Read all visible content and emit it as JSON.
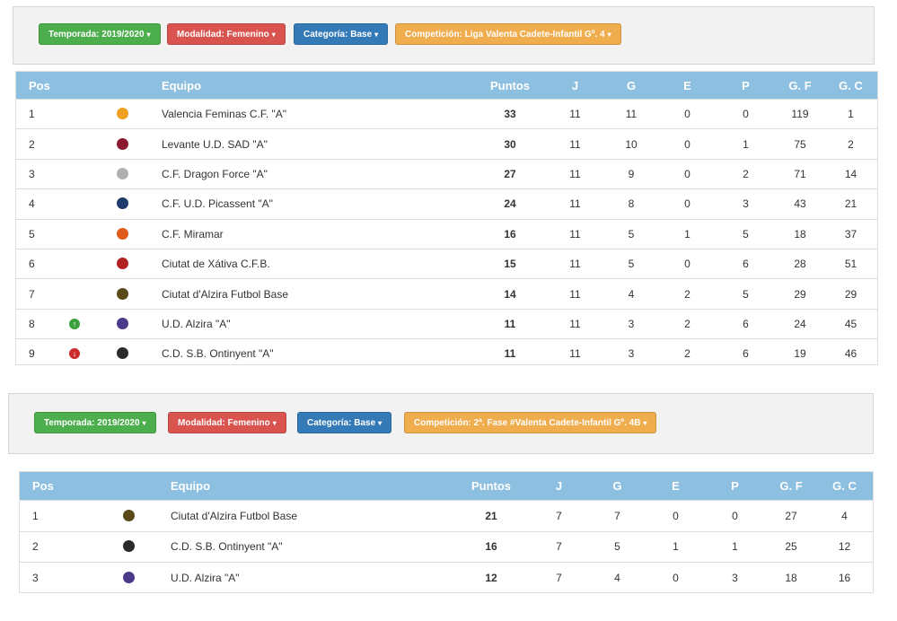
{
  "section1": {
    "filters": {
      "season": "Temporada: 2019/2020",
      "mode": "Modalidad: Femenino",
      "category": "Categoría: Base",
      "competition": "Competición: Liga Valenta Cadete-Infantil Gº. 4"
    },
    "headers": [
      "Pos",
      "Equipo",
      "Puntos",
      "J",
      "G",
      "E",
      "P",
      "G. F",
      "G. C"
    ],
    "rows": [
      {
        "pos": "1",
        "team": "Valencia Feminas C.F. \"A\"",
        "pts": "33",
        "j": "11",
        "g": "11",
        "e": "0",
        "p": "0",
        "gf": "119",
        "gc": "1",
        "crest": "valencia-crest-icon",
        "color": "#f0a020",
        "trend": ""
      },
      {
        "pos": "2",
        "team": "Levante U.D. SAD \"A\"",
        "pts": "30",
        "j": "11",
        "g": "10",
        "e": "0",
        "p": "1",
        "gf": "75",
        "gc": "2",
        "crest": "levante-crest-icon",
        "color": "#8b1a2e",
        "trend": ""
      },
      {
        "pos": "3",
        "team": "C.F. Dragon Force \"A\"",
        "pts": "27",
        "j": "11",
        "g": "9",
        "e": "0",
        "p": "2",
        "gf": "71",
        "gc": "14",
        "crest": "dragon-force-crest-icon",
        "color": "#b0b0b0",
        "trend": ""
      },
      {
        "pos": "4",
        "team": "C.F. U.D. Picassent \"A\"",
        "pts": "24",
        "j": "11",
        "g": "8",
        "e": "0",
        "p": "3",
        "gf": "43",
        "gc": "21",
        "crest": "picassent-crest-icon",
        "color": "#1f3b6b",
        "trend": ""
      },
      {
        "pos": "5",
        "team": "C.F. Miramar",
        "pts": "16",
        "j": "11",
        "g": "5",
        "e": "1",
        "p": "5",
        "gf": "18",
        "gc": "37",
        "crest": "miramar-crest-icon",
        "color": "#e05a1a",
        "trend": ""
      },
      {
        "pos": "6",
        "team": "Ciutat de Xátiva C.F.B.",
        "pts": "15",
        "j": "11",
        "g": "5",
        "e": "0",
        "p": "6",
        "gf": "28",
        "gc": "51",
        "crest": "xativa-crest-icon",
        "color": "#b22222",
        "trend": ""
      },
      {
        "pos": "7",
        "team": "Ciutat d'Alzira Futbol Base",
        "pts": "14",
        "j": "11",
        "g": "4",
        "e": "2",
        "p": "5",
        "gf": "29",
        "gc": "29",
        "crest": "alzira-futbol-base-crest-icon",
        "color": "#5a4a1a",
        "trend": ""
      },
      {
        "pos": "8",
        "team": "U.D. Alzira \"A\"",
        "pts": "11",
        "j": "11",
        "g": "3",
        "e": "2",
        "p": "6",
        "gf": "24",
        "gc": "45",
        "crest": "ud-alzira-crest-icon",
        "color": "#4b3a8a",
        "trend": "up"
      },
      {
        "pos": "9",
        "team": "C.D. S.B. Ontinyent \"A\"",
        "pts": "11",
        "j": "11",
        "g": "3",
        "e": "2",
        "p": "6",
        "gf": "19",
        "gc": "46",
        "crest": "ontinyent-crest-icon",
        "color": "#2a2a2a",
        "trend": "down"
      }
    ]
  },
  "section2": {
    "filters": {
      "season": "Temporada: 2019/2020",
      "mode": "Modalidad: Femenino",
      "category": "Categoría: Base",
      "competition": "Competición: 2ª. Fase #Valenta Cadete-Infantil Gº. 4B"
    },
    "headers": [
      "Pos",
      "Equipo",
      "Puntos",
      "J",
      "G",
      "E",
      "P",
      "G. F",
      "G. C"
    ],
    "rows": [
      {
        "pos": "1",
        "team": "Ciutat d'Alzira Futbol Base",
        "pts": "21",
        "j": "7",
        "g": "7",
        "e": "0",
        "p": "0",
        "gf": "27",
        "gc": "4",
        "crest": "alzira-futbol-base-crest-icon",
        "color": "#5a4a1a",
        "trend": ""
      },
      {
        "pos": "2",
        "team": "C.D. S.B. Ontinyent \"A\"",
        "pts": "16",
        "j": "7",
        "g": "5",
        "e": "1",
        "p": "1",
        "gf": "25",
        "gc": "12",
        "crest": "ontinyent-crest-icon",
        "color": "#2a2a2a",
        "trend": ""
      },
      {
        "pos": "3",
        "team": "U.D. Alzira \"A\"",
        "pts": "12",
        "j": "7",
        "g": "4",
        "e": "0",
        "p": "3",
        "gf": "18",
        "gc": "16",
        "crest": "ud-alzira-crest-icon",
        "color": "#4b3a8a",
        "trend": ""
      }
    ]
  },
  "colors": {
    "header_bg": "#8dbfe0",
    "green": "#4cae4c",
    "red": "#d9534f",
    "blue": "#337ab7",
    "orange": "#f0ad4e",
    "arrow_up": "#3ca13c",
    "arrow_down": "#cc2b2b"
  }
}
